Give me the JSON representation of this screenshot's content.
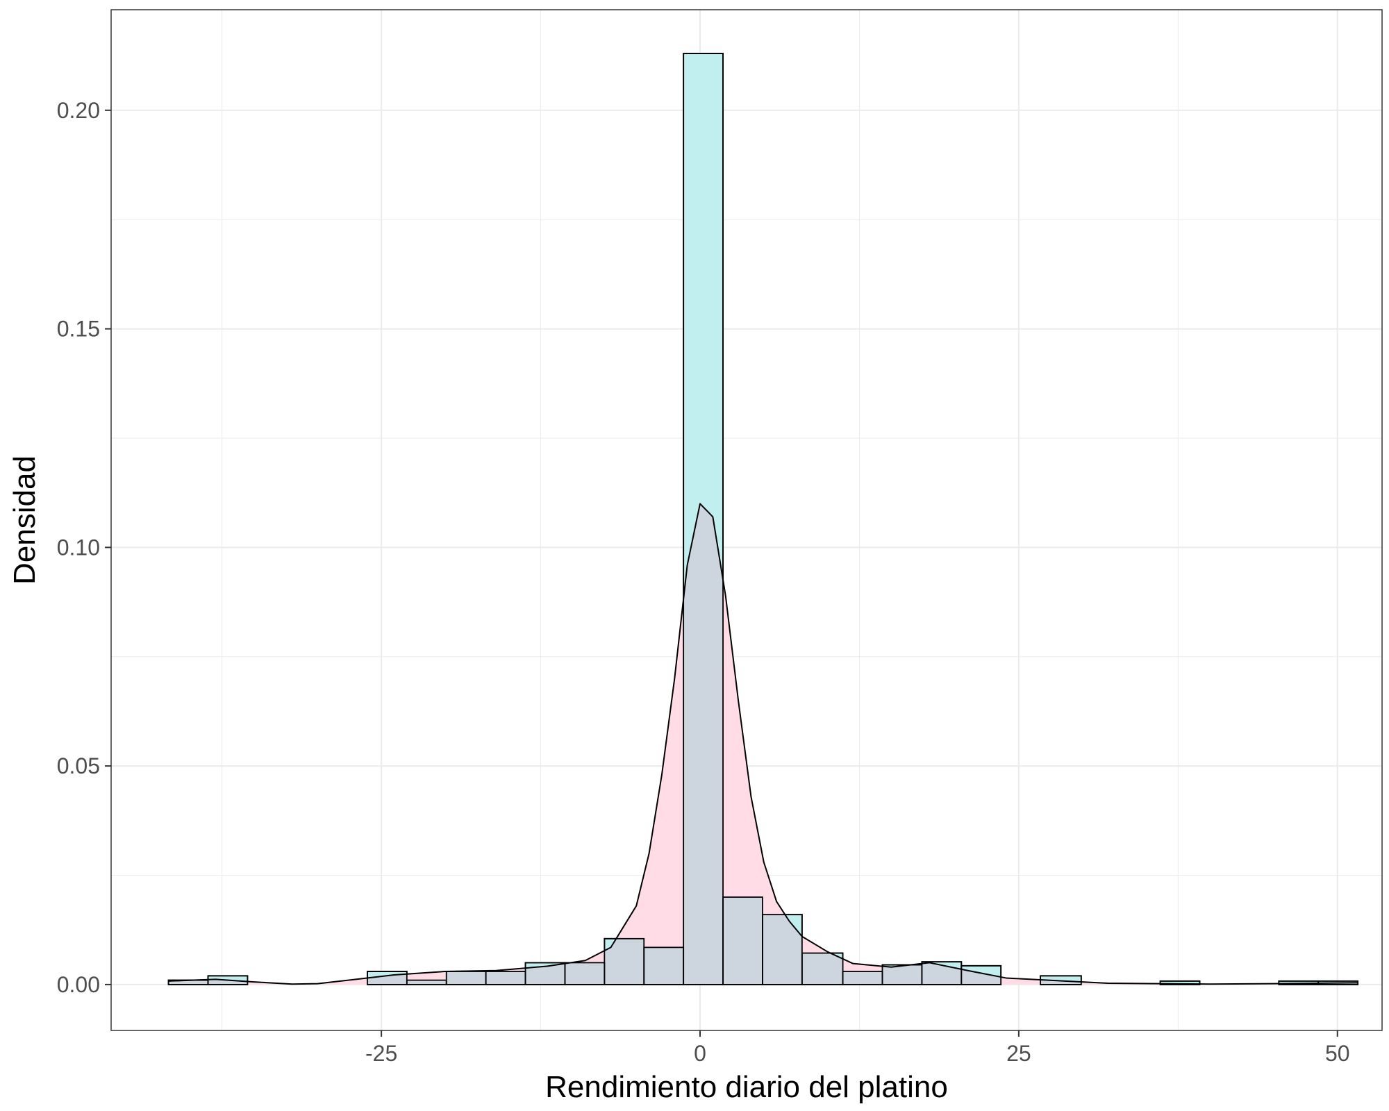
{
  "chart_data": {
    "type": "bar",
    "title": "",
    "xlabel": "Rendimiento diario del platino",
    "ylabel": "Densidad",
    "xlim": [
      -46.2,
      53.5
    ],
    "ylim": [
      -0.0105,
      0.223
    ],
    "x_ticks": [
      -25,
      0,
      25,
      50
    ],
    "x_tick_labels": [
      "-25",
      "0",
      "25",
      "50"
    ],
    "y_ticks": [
      0.0,
      0.05,
      0.1,
      0.15,
      0.2
    ],
    "y_tick_labels": [
      "0.00",
      "0.05",
      "0.10",
      "0.15",
      "0.20"
    ],
    "grid": true,
    "legend": "none",
    "colors": {
      "histogram_fill": "#c1eeee",
      "density_fill": "#ffdce6",
      "overlap_fill": "#cdd5de",
      "outline": "#000000",
      "grid": "#ebebeb",
      "panel_border": "#333333"
    },
    "histogram": {
      "bin_width": 3.12,
      "bins": [
        {
          "x0": -41.7,
          "x1": -38.6,
          "density": 0.001
        },
        {
          "x0": -38.6,
          "x1": -35.5,
          "density": 0.002
        },
        {
          "x0": -26.1,
          "x1": -23.0,
          "density": 0.003
        },
        {
          "x0": -23.0,
          "x1": -19.9,
          "density": 0.001
        },
        {
          "x0": -19.9,
          "x1": -16.8,
          "density": 0.003
        },
        {
          "x0": -16.8,
          "x1": -13.7,
          "density": 0.003
        },
        {
          "x0": -13.7,
          "x1": -10.6,
          "density": 0.005
        },
        {
          "x0": -10.6,
          "x1": -7.5,
          "density": 0.005
        },
        {
          "x0": -7.5,
          "x1": -4.4,
          "density": 0.0105
        },
        {
          "x0": -4.4,
          "x1": -1.3,
          "density": 0.0085
        },
        {
          "x0": -1.3,
          "x1": 1.8,
          "density": 0.213
        },
        {
          "x0": 1.8,
          "x1": 4.9,
          "density": 0.02
        },
        {
          "x0": 4.9,
          "x1": 8.0,
          "density": 0.016
        },
        {
          "x0": 8.0,
          "x1": 11.2,
          "density": 0.0072
        },
        {
          "x0": 11.2,
          "x1": 14.3,
          "density": 0.003
        },
        {
          "x0": 14.3,
          "x1": 17.4,
          "density": 0.0045
        },
        {
          "x0": 17.4,
          "x1": 20.5,
          "density": 0.0052
        },
        {
          "x0": 20.5,
          "x1": 23.6,
          "density": 0.0043
        },
        {
          "x0": 26.7,
          "x1": 29.9,
          "density": 0.002
        },
        {
          "x0": 36.1,
          "x1": 39.2,
          "density": 0.0008
        },
        {
          "x0": 45.4,
          "x1": 48.5,
          "density": 0.0008
        },
        {
          "x0": 48.5,
          "x1": 51.6,
          "density": 0.0008
        }
      ]
    },
    "density_curve": {
      "x": [
        -41.7,
        -38.0,
        -35.0,
        -32.0,
        -30.0,
        -27.0,
        -24.0,
        -20.0,
        -16.0,
        -12.0,
        -9.0,
        -7.0,
        -5.0,
        -4.0,
        -3.0,
        -2.0,
        -1.0,
        0.0,
        1.0,
        2.0,
        3.0,
        4.0,
        5.0,
        6.0,
        7.0,
        8.0,
        10.0,
        12.0,
        15.0,
        18.0,
        21.0,
        24.0,
        28.0,
        32.0,
        36.0,
        40.0,
        45.0,
        51.6
      ],
      "y": [
        0.0008,
        0.0012,
        0.0006,
        0.0001,
        0.0002,
        0.0012,
        0.0022,
        0.003,
        0.0032,
        0.0042,
        0.0055,
        0.0085,
        0.018,
        0.03,
        0.048,
        0.07,
        0.096,
        0.11,
        0.107,
        0.089,
        0.065,
        0.043,
        0.028,
        0.019,
        0.0145,
        0.011,
        0.0075,
        0.0048,
        0.004,
        0.005,
        0.0032,
        0.0015,
        0.0009,
        0.0003,
        0.0002,
        0.0001,
        0.0002,
        0.0004
      ]
    }
  }
}
